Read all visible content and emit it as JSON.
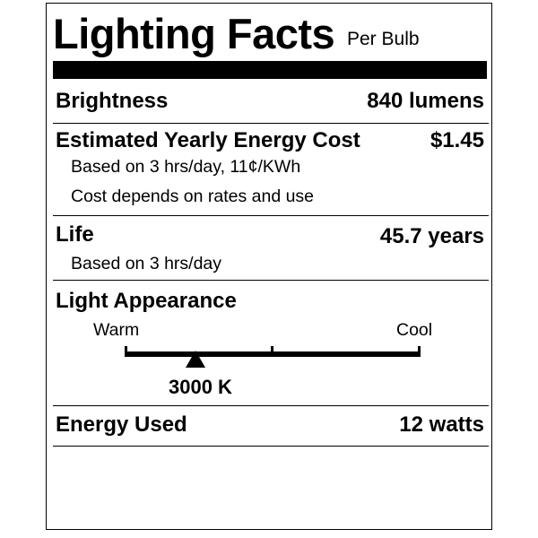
{
  "header": {
    "title": "Lighting Facts",
    "subtitle": "Per Bulb"
  },
  "brightness": {
    "label": "Brightness",
    "value": "840 lumens"
  },
  "energy_cost": {
    "label": "Estimated Yearly Energy Cost",
    "value": "$1.45",
    "note1": "Based on 3 hrs/day, 11¢/KWh",
    "note2": "Cost depends on rates and use"
  },
  "life": {
    "label": "Life",
    "value": "45.7 years",
    "note": "Based on 3 hrs/day"
  },
  "light_appearance": {
    "label": "Light Appearance",
    "warm_label": "Warm",
    "cool_label": "Cool",
    "value": "3000 K",
    "position_fraction": 0.24
  },
  "energy_used": {
    "label": "Energy Used",
    "value": "12 watts"
  }
}
